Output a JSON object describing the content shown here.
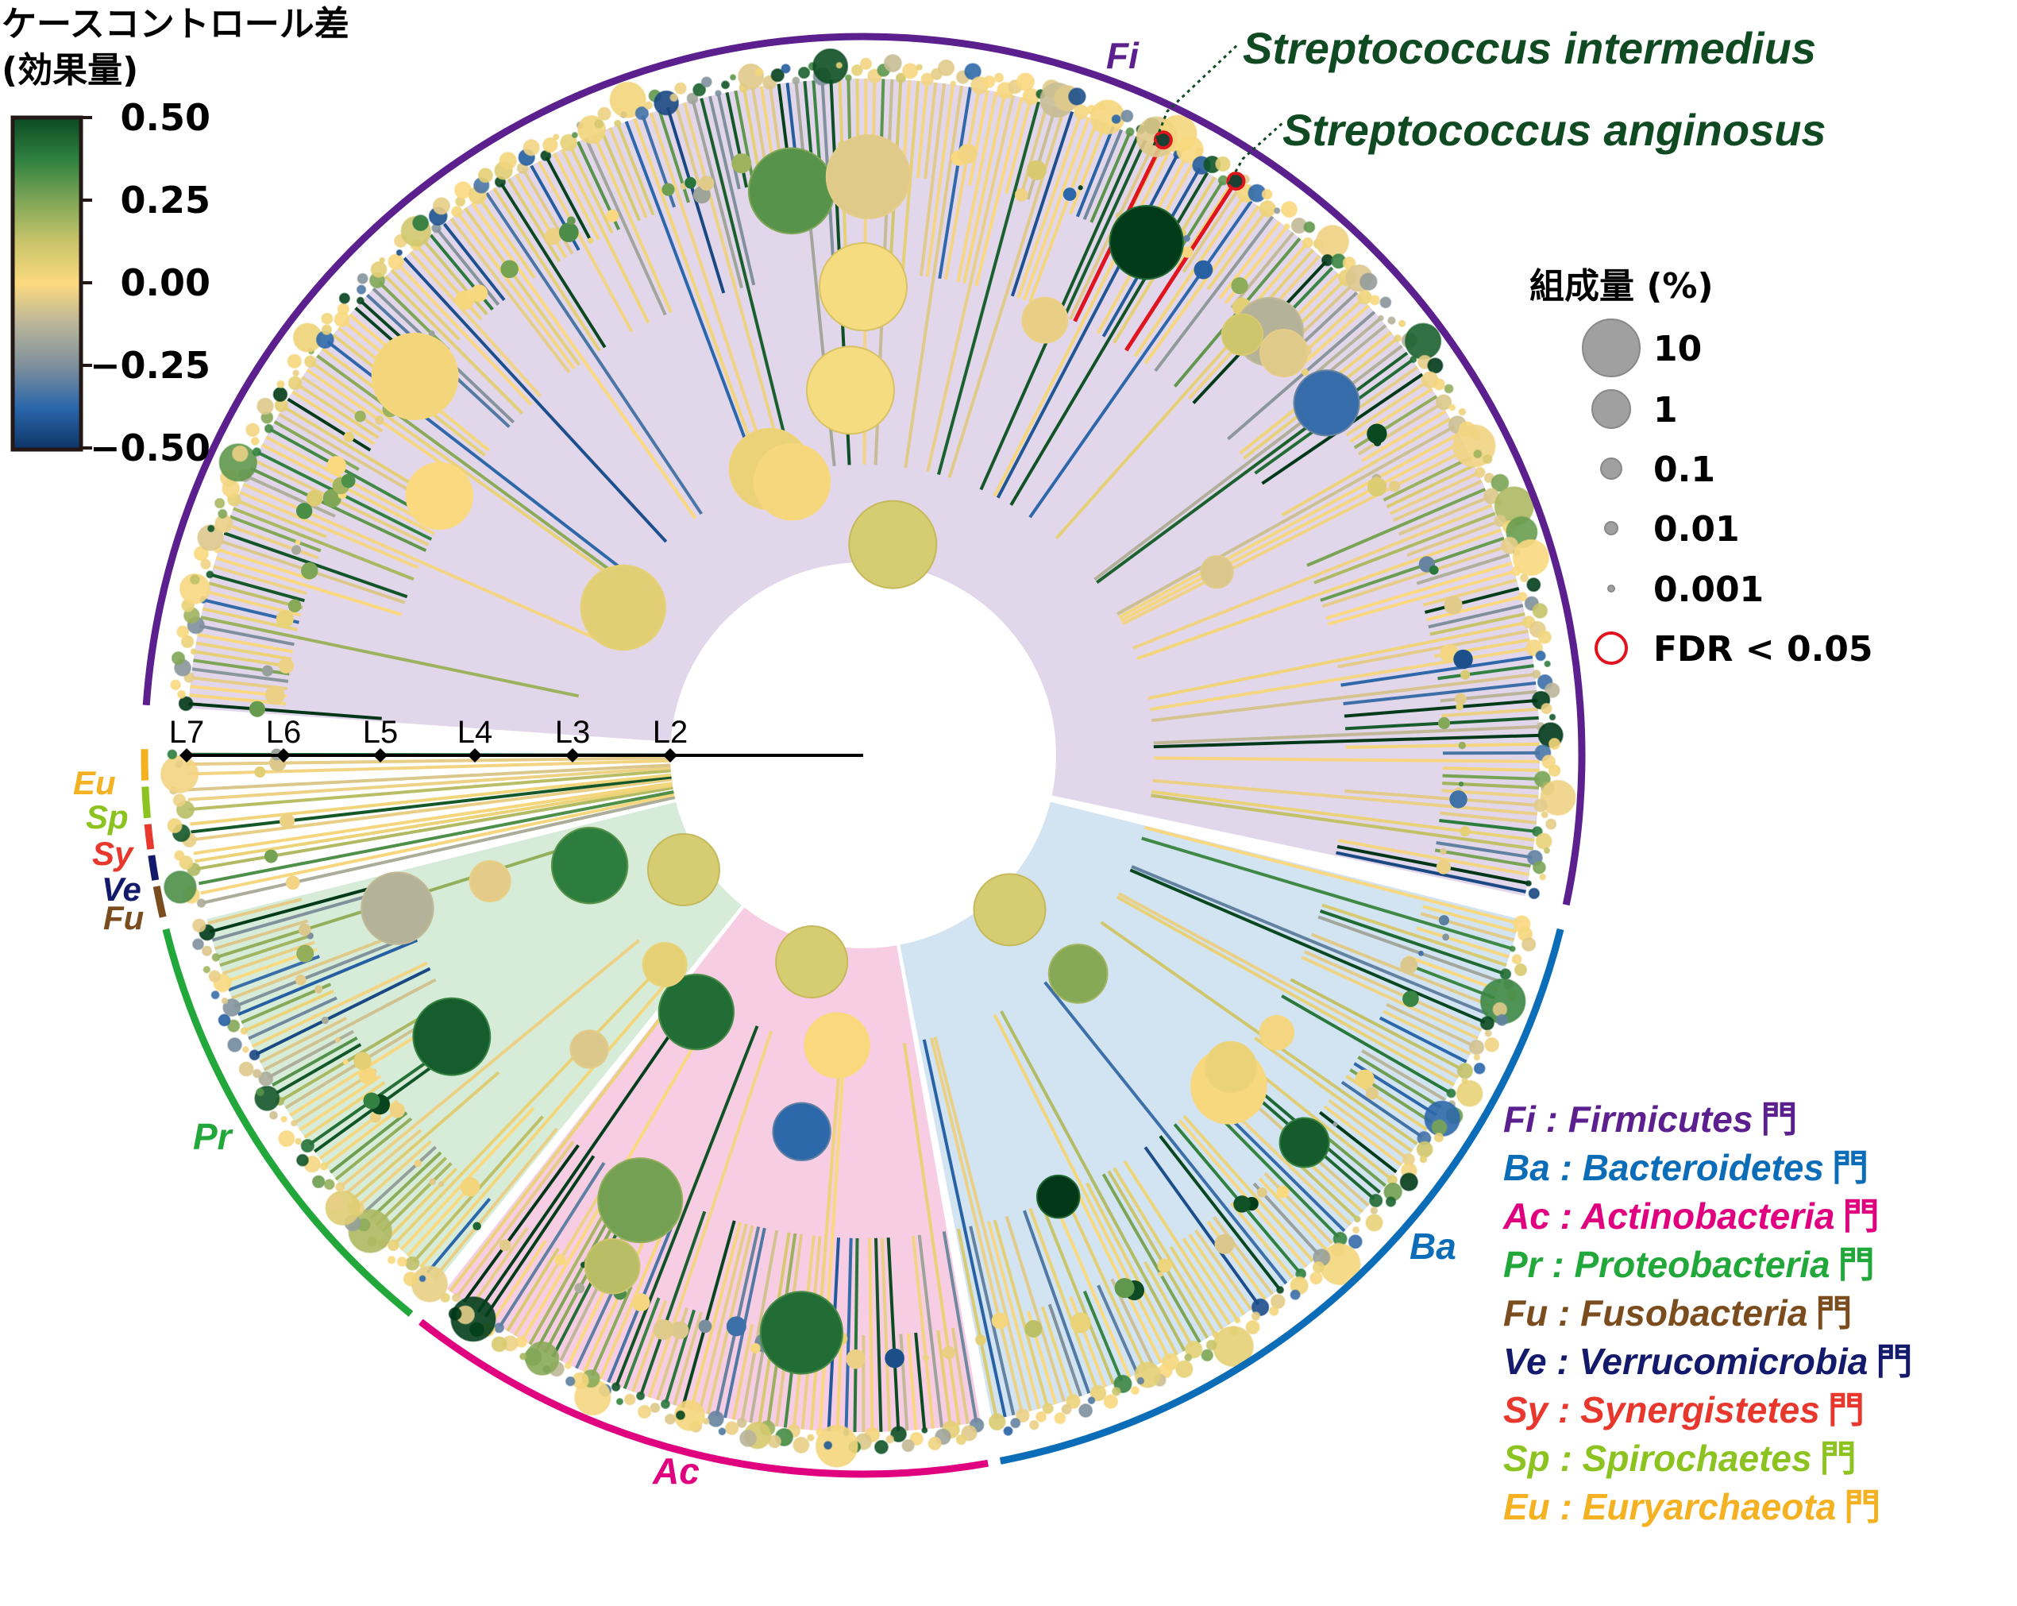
{
  "colorbar": {
    "title_line1": "ケースコントロール差",
    "title_line2": "(効果量)",
    "ticks": [
      "0.50",
      "0.25",
      "0.00",
      "−0.25",
      "−0.50"
    ],
    "stops": [
      "#0b4a22",
      "#2f8040",
      "#7ea656",
      "#c9c46a",
      "#fbd97f",
      "#b8b49a",
      "#7d8f9c",
      "#2a66ab",
      "#0d3466"
    ]
  },
  "size_legend": {
    "title": "組成量 (%)",
    "items": [
      "10",
      "1",
      "0.1",
      "0.01",
      "0.001"
    ],
    "fdr_label": "FDR < 0.05",
    "circle_color": "#a0a0a0",
    "fdr_color": "#e0141e"
  },
  "annotations": {
    "species1": "Streptococcus intermedius",
    "species2": "Streptococcus anginosus",
    "color": "#0f4a22"
  },
  "levels": [
    "L2",
    "L3",
    "L4",
    "L5",
    "L6",
    "L7"
  ],
  "phyla": [
    {
      "abbr": "Fi",
      "name": "Firmicutes",
      "suffix": "門",
      "color": "#5b1f8e",
      "fill": "#e2d6ea"
    },
    {
      "abbr": "Ba",
      "name": "Bacteroidetes",
      "suffix": "門",
      "color": "#0b6db7",
      "fill": "#d2e3f1"
    },
    {
      "abbr": "Ac",
      "name": "Actinobacteria",
      "suffix": "門",
      "color": "#e0007f",
      "fill": "#f7cde4"
    },
    {
      "abbr": "Pr",
      "name": "Proteobacteria",
      "suffix": "門",
      "color": "#22a83a",
      "fill": "#d6ecd8"
    },
    {
      "abbr": "Fu",
      "name": "Fusobacteria",
      "suffix": "門",
      "color": "#7b4d1e",
      "fill": "#ffffff"
    },
    {
      "abbr": "Ve",
      "name": "Verrucomicrobia",
      "suffix": "門",
      "color": "#141a6b",
      "fill": "#ffffff"
    },
    {
      "abbr": "Sy",
      "name": "Synergistetes",
      "suffix": "門",
      "color": "#e8372c",
      "fill": "#ffffff"
    },
    {
      "abbr": "Sp",
      "name": "Spirochaetes",
      "suffix": "門",
      "color": "#8cc320",
      "fill": "#ffffff"
    },
    {
      "abbr": "Eu",
      "name": "Euryarchaeota",
      "suffix": "門",
      "color": "#f4b223",
      "fill": "#ffffff"
    }
  ]
}
